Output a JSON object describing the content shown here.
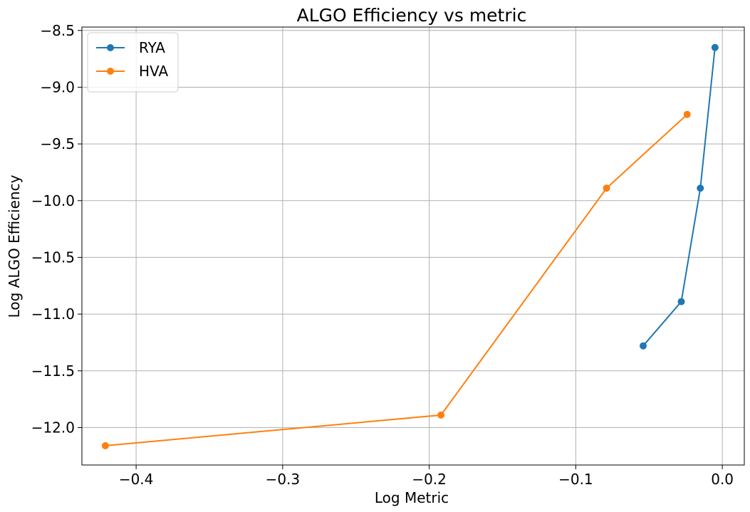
{
  "chart_data": {
    "type": "line",
    "title": "ALGO Efficiency vs metric",
    "xlabel": "Log Metric",
    "ylabel": "Log ALGO Efficiency",
    "xlim": [
      -0.437,
      0.015
    ],
    "ylim": [
      -12.33,
      -8.47
    ],
    "xticks": [
      -0.4,
      -0.3,
      -0.2,
      -0.1,
      0.0
    ],
    "xtick_labels": [
      "−0.4",
      "−0.3",
      "−0.2",
      "−0.1",
      "0.0"
    ],
    "yticks": [
      -8.5,
      -9.0,
      -9.5,
      -10.0,
      -10.5,
      -11.0,
      -11.5,
      -12.0
    ],
    "ytick_labels": [
      "−8.5",
      "−9.0",
      "−9.5",
      "−10.0",
      "−10.5",
      "−11.0",
      "−11.5",
      "−12.0"
    ],
    "grid": true,
    "legend_position": "top-left",
    "series": [
      {
        "name": "RYA",
        "color": "#1f77b4",
        "x": [
          -0.054,
          -0.028,
          -0.015,
          -0.005
        ],
        "y": [
          -11.28,
          -10.89,
          -9.89,
          -8.65
        ]
      },
      {
        "name": "HVA",
        "color": "#ff7f0e",
        "x": [
          -0.421,
          -0.192,
          -0.079,
          -0.024
        ],
        "y": [
          -12.16,
          -11.89,
          -9.89,
          -9.24
        ]
      }
    ]
  }
}
